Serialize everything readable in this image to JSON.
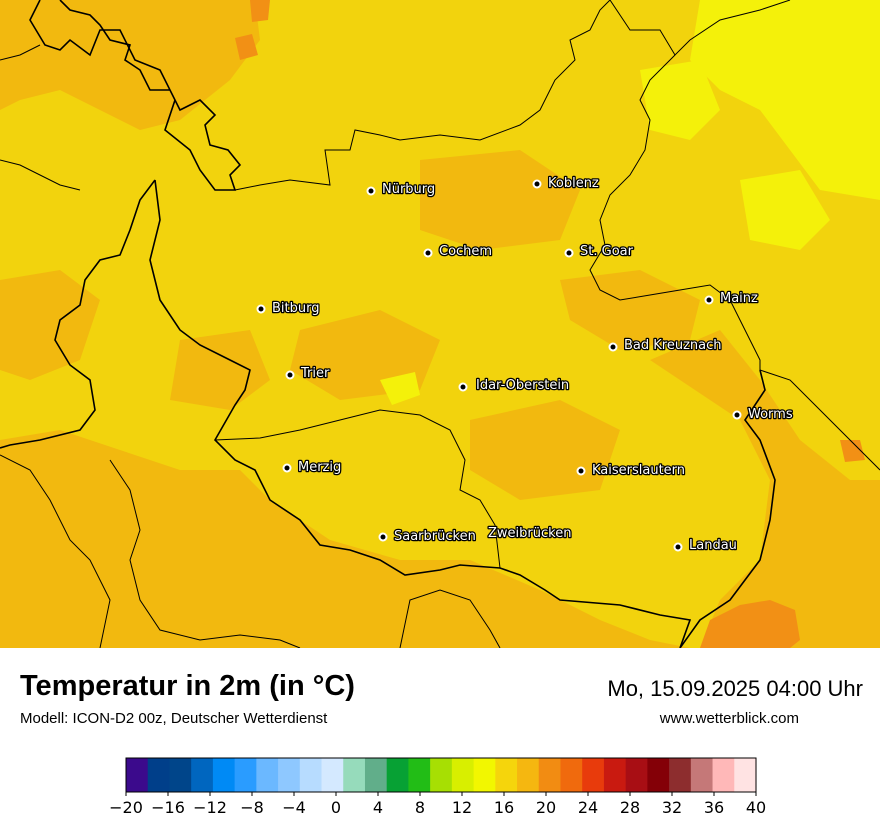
{
  "title": "Temperatur in 2m (in °C)",
  "model": "Modell: ICON-D2 00z, Deutscher Wetterdienst",
  "datetime": "Mo, 15.09.2025 04:00 Uhr",
  "website": "www.wetterblick.com",
  "cities": [
    {
      "id": "nuerburg",
      "name": "Nürburg"
    },
    {
      "id": "koblenz",
      "name": "Koblenz"
    },
    {
      "id": "cochem",
      "name": "Cochem"
    },
    {
      "id": "st-goar",
      "name": "St. Goar"
    },
    {
      "id": "mainz",
      "name": "Mainz"
    },
    {
      "id": "bitburg",
      "name": "Bitburg"
    },
    {
      "id": "bad-kreuznach",
      "name": "Bad Kreuznach"
    },
    {
      "id": "trier",
      "name": "Trier"
    },
    {
      "id": "idar-oberstein",
      "name": "Idar-Oberstein"
    },
    {
      "id": "worms",
      "name": "Worms"
    },
    {
      "id": "merzig",
      "name": "Merzig"
    },
    {
      "id": "kaiserslautern",
      "name": "Kaiserslautern"
    },
    {
      "id": "saarbruecken",
      "name": "Saarbrücken"
    },
    {
      "id": "zweibruecken",
      "name": "Zweibrücken"
    },
    {
      "id": "landau",
      "name": "Landau"
    }
  ],
  "colorbar": {
    "unit": "°C",
    "min": -20,
    "max": 40,
    "step": 2,
    "tick_labels": [
      "−20",
      "−16",
      "−12",
      "−8",
      "−4",
      "0",
      "4",
      "8",
      "12",
      "16",
      "20",
      "24",
      "28",
      "32",
      "36",
      "40"
    ],
    "colors": [
      "#3b0a8c",
      "#003f8a",
      "#00458a",
      "#0066bf",
      "#008af5",
      "#2a9cff",
      "#6bb8ff",
      "#8ec8ff",
      "#b7dcff",
      "#d4e9ff",
      "#96dbbb",
      "#61ae8a",
      "#07a134",
      "#22bd16",
      "#a7df03",
      "#d8ef00",
      "#f2f700",
      "#f5d50c",
      "#f5b710",
      "#f28c12",
      "#f06a0d",
      "#e83b0c",
      "#c91a10",
      "#a80e14",
      "#840007",
      "#8d2d2e",
      "#c57878",
      "#ffb8b8",
      "#ffe3e3"
    ]
  }
}
